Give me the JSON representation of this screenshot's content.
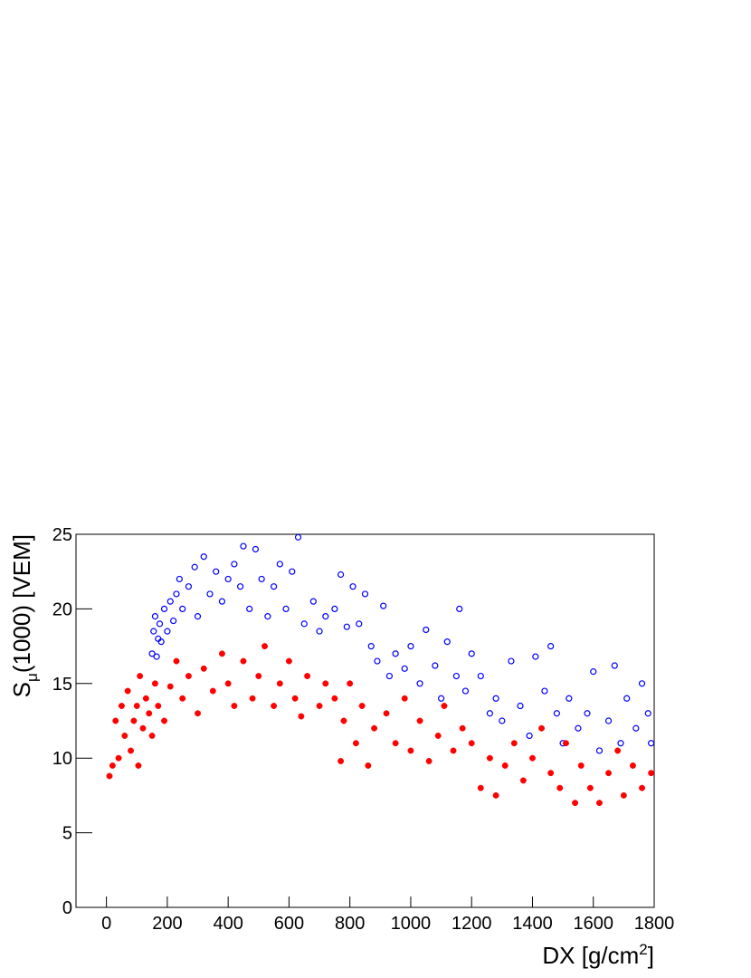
{
  "chart_data": {
    "type": "scatter",
    "xlabel": {
      "main": "DX [g/cm",
      "sup": "2",
      "rest": "]"
    },
    "ylabel": {
      "main": "S",
      "sub": "μ",
      "rest": "(1000) [VEM]"
    },
    "xlim": [
      -100,
      1800
    ],
    "ylim": [
      0,
      25
    ],
    "xticks": [
      0,
      200,
      400,
      600,
      800,
      1000,
      1200,
      1400,
      1600,
      1800
    ],
    "yticks": [
      0,
      5,
      10,
      15,
      20,
      25
    ],
    "series": [
      {
        "color": "#0000ff",
        "marker": "open",
        "x": [
          150,
          155,
          160,
          165,
          170,
          175,
          180,
          190,
          200,
          210,
          220,
          230,
          240,
          250,
          270,
          290,
          300,
          320,
          340,
          360,
          380,
          400,
          420,
          440,
          450,
          470,
          490,
          510,
          530,
          550,
          570,
          590,
          610,
          630,
          650,
          680,
          700,
          720,
          750,
          770,
          790,
          810,
          830,
          850,
          870,
          890,
          910,
          930,
          950,
          980,
          1000,
          1030,
          1050,
          1080,
          1100,
          1120,
          1150,
          1160,
          1180,
          1200,
          1230,
          1260,
          1280,
          1300,
          1330,
          1360,
          1390,
          1410,
          1440,
          1460,
          1480,
          1500,
          1520,
          1550,
          1580,
          1600,
          1620,
          1650,
          1670,
          1690,
          1710,
          1740,
          1760,
          1780,
          1790
        ],
        "values": [
          17.0,
          18.5,
          19.5,
          16.8,
          18.0,
          19.0,
          17.8,
          20.0,
          18.5,
          20.5,
          19.2,
          21.0,
          22.0,
          20.0,
          21.5,
          22.8,
          19.5,
          23.5,
          21.0,
          22.5,
          20.5,
          22.0,
          23.0,
          21.5,
          24.2,
          20.0,
          24.0,
          22.0,
          19.5,
          21.5,
          23.0,
          20.0,
          22.5,
          24.8,
          19.0,
          20.5,
          18.5,
          19.5,
          20.0,
          22.3,
          18.8,
          21.5,
          19.0,
          21.0,
          17.5,
          16.5,
          20.2,
          15.5,
          17.0,
          16.0,
          17.5,
          15.0,
          18.6,
          16.2,
          14.0,
          17.8,
          15.5,
          20.0,
          14.5,
          17.0,
          15.5,
          13.0,
          14.0,
          12.5,
          16.5,
          13.5,
          11.5,
          16.8,
          14.5,
          17.5,
          13.0,
          11.0,
          14.0,
          12.0,
          13.0,
          15.8,
          10.5,
          12.5,
          16.2,
          11.0,
          14.0,
          12.0,
          15.0,
          13.0,
          11.0
        ]
      },
      {
        "color": "#ff0000",
        "marker": "filled",
        "x": [
          10,
          20,
          30,
          40,
          50,
          60,
          70,
          80,
          90,
          100,
          105,
          110,
          120,
          130,
          140,
          150,
          160,
          170,
          190,
          210,
          230,
          250,
          270,
          300,
          320,
          350,
          380,
          400,
          420,
          450,
          480,
          500,
          520,
          550,
          570,
          600,
          620,
          640,
          660,
          700,
          720,
          750,
          770,
          780,
          800,
          820,
          840,
          860,
          880,
          920,
          950,
          980,
          1000,
          1030,
          1060,
          1090,
          1110,
          1140,
          1170,
          1200,
          1230,
          1260,
          1280,
          1310,
          1340,
          1370,
          1400,
          1430,
          1460,
          1490,
          1510,
          1540,
          1560,
          1590,
          1620,
          1650,
          1680,
          1700,
          1730,
          1760,
          1790
        ],
        "values": [
          8.8,
          9.5,
          12.5,
          10.0,
          13.5,
          11.5,
          14.5,
          10.5,
          12.5,
          13.5,
          9.5,
          15.5,
          12.0,
          14.0,
          13.0,
          11.5,
          15.0,
          13.5,
          12.5,
          14.8,
          16.5,
          14.0,
          15.5,
          13.0,
          16.0,
          14.5,
          17.0,
          15.0,
          13.5,
          16.5,
          14.0,
          15.5,
          17.5,
          13.5,
          15.0,
          16.5,
          14.0,
          12.8,
          15.5,
          13.5,
          15.0,
          14.0,
          9.8,
          12.5,
          15.0,
          11.0,
          13.5,
          9.5,
          12.0,
          13.0,
          11.0,
          14.0,
          10.5,
          12.5,
          9.8,
          11.5,
          13.5,
          10.5,
          12.0,
          11.0,
          8.0,
          10.0,
          7.5,
          9.5,
          11.0,
          8.5,
          10.0,
          12.0,
          9.0,
          8.0,
          11.0,
          7.0,
          9.5,
          8.0,
          7.0,
          9.0,
          10.5,
          7.5,
          9.5,
          8.0,
          9.0
        ]
      }
    ]
  }
}
